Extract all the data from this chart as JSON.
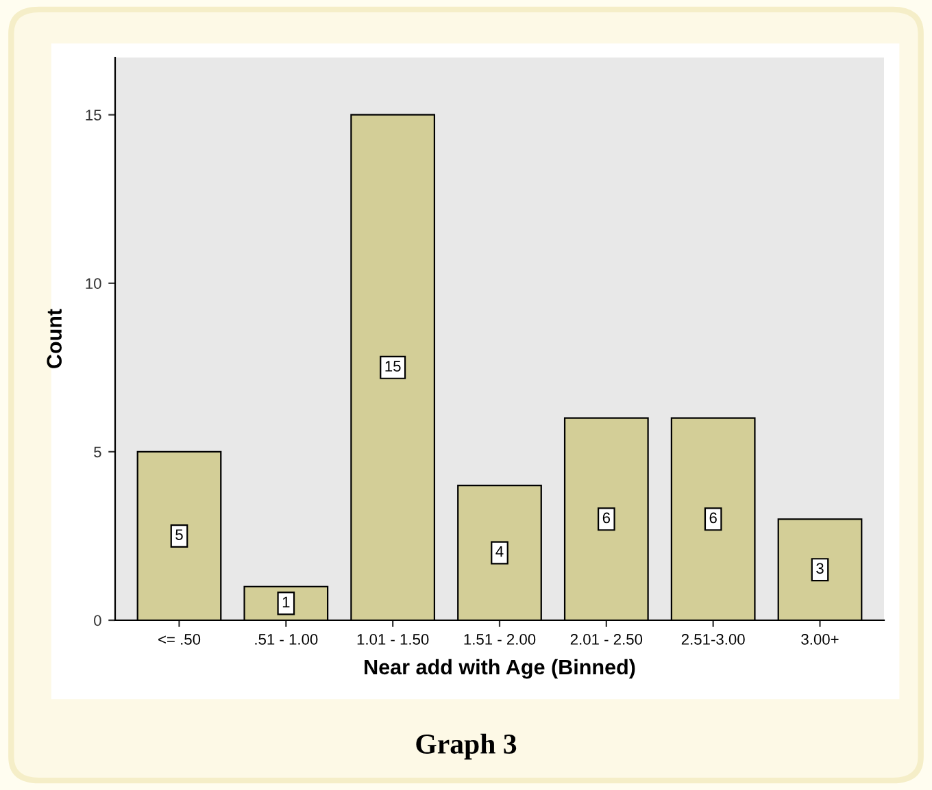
{
  "chart_data": {
    "type": "bar",
    "title": "Graph 3",
    "xlabel": "Near add with Age (Binned)",
    "ylabel": "Count",
    "categories": [
      "<= .50",
      ".51 - 1.00",
      "1.01 - 1.50",
      "1.51 - 2.00",
      "2.01 - 2.50",
      "2.51-3.00",
      "3.00+"
    ],
    "values": [
      5,
      1,
      15,
      4,
      6,
      6,
      3
    ],
    "color": "#d3ce97",
    "ylim": [
      0,
      16.7
    ],
    "yticks": [
      0,
      5,
      10,
      15
    ],
    "grid": false,
    "data_labels": true
  }
}
